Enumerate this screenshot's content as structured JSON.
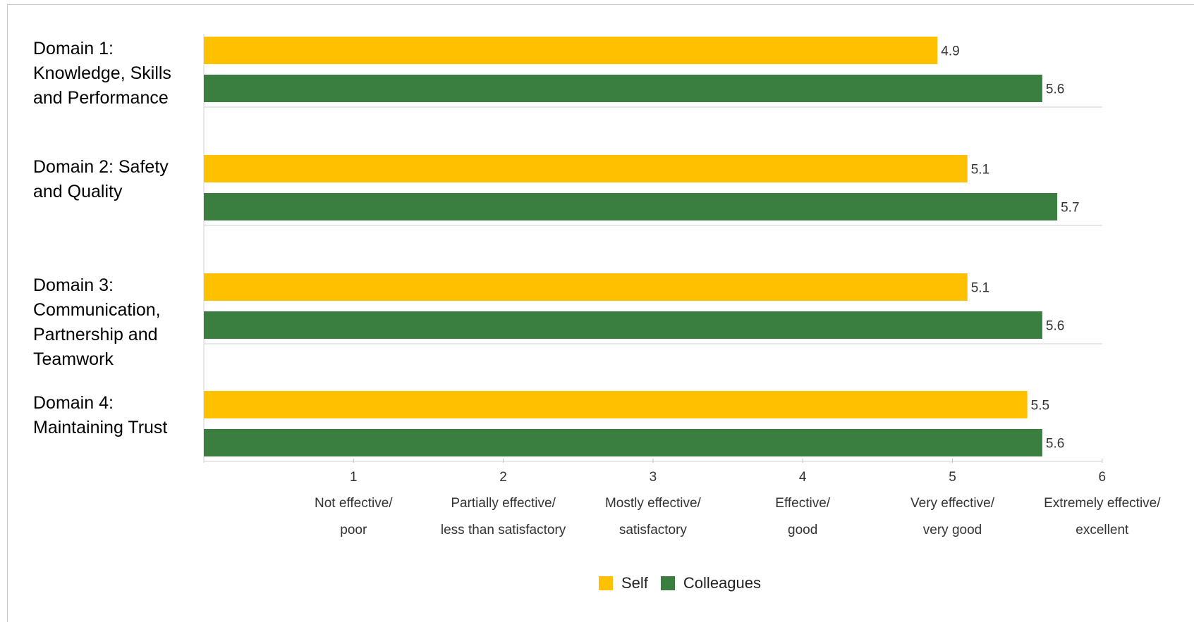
{
  "chart_data": {
    "type": "bar",
    "orientation": "horizontal",
    "categories": [
      "Domain 1:\nKnowledge, Skills\nand Performance",
      "Domain 2: Safety\nand Quality",
      "Domain 3:\nCommunication,\nPartnership and\nTeamwork",
      "Domain 4:\nMaintaining Trust"
    ],
    "series": [
      {
        "name": "Self",
        "color": "#FFC000",
        "values": [
          4.9,
          5.1,
          5.1,
          5.5
        ]
      },
      {
        "name": "Colleagues",
        "color": "#3A7F3F",
        "values": [
          5.6,
          5.7,
          5.6,
          5.6
        ]
      }
    ],
    "xlim": [
      0,
      6
    ],
    "ticks": [
      {
        "value": 1,
        "number": "1",
        "line1": "Not effective/",
        "line2": "poor"
      },
      {
        "value": 2,
        "number": "2",
        "line1": "Partially effective/",
        "line2": "less than satisfactory"
      },
      {
        "value": 3,
        "number": "3",
        "line1": "Mostly effective/",
        "line2": "satisfactory"
      },
      {
        "value": 4,
        "number": "4",
        "line1": "Effective/",
        "line2": "good"
      },
      {
        "value": 5,
        "number": "5",
        "line1": "Very effective/",
        "line2": "very good"
      },
      {
        "value": 6,
        "number": "6",
        "line1": "Extremely effective/",
        "line2": "excellent"
      }
    ],
    "grid": false,
    "legend_position": "bottom-center"
  }
}
